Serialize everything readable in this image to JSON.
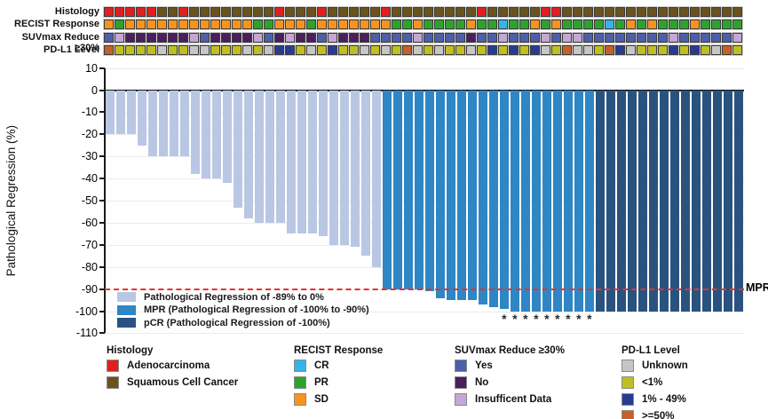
{
  "figure_title": "Pathological regression waterfall plot with clinical annotation tracks",
  "tracks": {
    "palette": {
      "adeno": "#e0201f",
      "squam": "#6b531d",
      "cr": "#36b3e8",
      "pr": "#2da32d",
      "sd": "#f7941e",
      "yes": "#4d5fa8",
      "no": "#4b1e5e",
      "insufficient": "#c6a6d6",
      "unknown": "#c6c6c6",
      "lt1": "#bfbf21",
      "p1to49": "#2b3a91",
      "ge50": "#c65f2b"
    },
    "rows": [
      {
        "name": "histology",
        "label": "Histology",
        "cells": [
          "adeno",
          "adeno",
          "adeno",
          "adeno",
          "adeno",
          "squam",
          "squam",
          "adeno",
          "squam",
          "squam",
          "squam",
          "squam",
          "squam",
          "squam",
          "squam",
          "squam",
          "adeno",
          "squam",
          "squam",
          "squam",
          "adeno",
          "squam",
          "squam",
          "squam",
          "squam",
          "squam",
          "adeno",
          "squam",
          "squam",
          "squam",
          "squam",
          "squam",
          "squam",
          "squam",
          "squam",
          "adeno",
          "squam",
          "squam",
          "squam",
          "squam",
          "squam",
          "adeno",
          "adeno",
          "squam",
          "squam",
          "squam",
          "squam",
          "squam",
          "squam",
          "squam",
          "squam",
          "squam",
          "squam",
          "squam",
          "squam",
          "squam",
          "squam",
          "squam",
          "squam",
          "squam"
        ]
      },
      {
        "name": "recist",
        "label": "RECIST Response",
        "cells": [
          "sd",
          "pr",
          "sd",
          "sd",
          "sd",
          "sd",
          "sd",
          "sd",
          "sd",
          "sd",
          "sd",
          "sd",
          "sd",
          "sd",
          "pr",
          "pr",
          "sd",
          "sd",
          "sd",
          "pr",
          "sd",
          "sd",
          "sd",
          "sd",
          "sd",
          "sd",
          "sd",
          "pr",
          "pr",
          "sd",
          "pr",
          "pr",
          "pr",
          "pr",
          "sd",
          "pr",
          "pr",
          "cr",
          "pr",
          "pr",
          "sd",
          "pr",
          "sd",
          "pr",
          "pr",
          "pr",
          "pr",
          "cr",
          "pr",
          "sd",
          "pr",
          "sd",
          "pr",
          "pr",
          "pr",
          "sd",
          "pr",
          "pr",
          "pr",
          "pr"
        ]
      },
      {
        "name": "suvmax",
        "label": "SUVmax Reduce ≥30%",
        "cells": [
          "yes",
          "insufficient",
          "no",
          "no",
          "no",
          "no",
          "no",
          "no",
          "insufficient",
          "yes",
          "no",
          "no",
          "no",
          "no",
          "insufficient",
          "yes",
          "no",
          "insufficient",
          "no",
          "no",
          "yes",
          "insufficient",
          "no",
          "no",
          "no",
          "yes",
          "yes",
          "yes",
          "yes",
          "insufficient",
          "yes",
          "yes",
          "yes",
          "yes",
          "no",
          "yes",
          "yes",
          "insufficient",
          "yes",
          "yes",
          "yes",
          "insufficient",
          "yes",
          "insufficient",
          "insufficient",
          "yes",
          "yes",
          "yes",
          "yes",
          "yes",
          "yes",
          "yes",
          "yes",
          "insufficient",
          "yes",
          "yes",
          "yes",
          "yes",
          "yes",
          "insufficient"
        ]
      },
      {
        "name": "pdl1",
        "label": "PD-L1 Level",
        "cells": [
          "ge50",
          "lt1",
          "lt1",
          "lt1",
          "lt1",
          "unknown",
          "lt1",
          "lt1",
          "unknown",
          "unknown",
          "lt1",
          "lt1",
          "lt1",
          "unknown",
          "lt1",
          "unknown",
          "p1to49",
          "p1to49",
          "lt1",
          "unknown",
          "lt1",
          "p1to49",
          "lt1",
          "lt1",
          "unknown",
          "lt1",
          "unknown",
          "lt1",
          "ge50",
          "unknown",
          "lt1",
          "unknown",
          "lt1",
          "lt1",
          "unknown",
          "lt1",
          "p1to49",
          "lt1",
          "p1to49",
          "lt1",
          "p1to49",
          "unknown",
          "lt1",
          "ge50",
          "unknown",
          "unknown",
          "lt1",
          "ge50",
          "p1to49",
          "unknown",
          "lt1",
          "lt1",
          "lt1",
          "p1to49",
          "lt1",
          "p1to49",
          "lt1",
          "unknown",
          "ge50",
          "lt1"
        ]
      }
    ]
  },
  "chart_data": {
    "type": "bar",
    "title": "",
    "xlabel": "",
    "ylabel": "Pathological Regression (%)",
    "ylim": [
      -110,
      10
    ],
    "yticks": [
      10,
      0,
      -10,
      -20,
      -30,
      -40,
      -50,
      -60,
      -70,
      -80,
      -90,
      -100,
      -110
    ],
    "grid": true,
    "values": [
      -20,
      -20,
      -20,
      -25,
      -30,
      -30,
      -30,
      -30,
      -38,
      -40,
      -40,
      -42,
      -53,
      -58,
      -60,
      -60,
      -60,
      -65,
      -65,
      -65,
      -66,
      -70,
      -70,
      -71,
      -75,
      -80,
      -90,
      -90,
      -90,
      -90,
      -91,
      -94,
      -95,
      -95,
      -95,
      -97,
      -98,
      -99,
      -100,
      -100,
      -100,
      -100,
      -100,
      -100,
      -100,
      -100,
      -100,
      -100,
      -100,
      -100,
      -100,
      -100,
      -100,
      -100,
      -100,
      -100,
      -100,
      -100,
      -100,
      -100
    ],
    "segments": [
      {
        "name": "regression",
        "label": "Pathological Regression of -89% to 0%",
        "color": "#b9c7e4",
        "count": 26
      },
      {
        "name": "mpr",
        "label": "MPR (Pathological Regression of -100% to -90%)",
        "color": "#2e86c5",
        "count": 20
      },
      {
        "name": "pcr",
        "label": "pCR (Pathological Regression of -100%)",
        "color": "#2a527f",
        "count": 14
      }
    ],
    "reference_line": {
      "value": -90,
      "label": "MPR",
      "color": "#e8322c"
    },
    "asterisk_bars": [
      38,
      39,
      40,
      41,
      42,
      43,
      44,
      45,
      46
    ],
    "asterisk_symbol": "*",
    "legend_position": "lower-left-inside"
  },
  "bottom_legend": [
    {
      "title": "Histology",
      "items": [
        {
          "label": "Adenocarcinoma",
          "color": "#e0201f"
        },
        {
          "label": "Squamous Cell Cancer",
          "color": "#6b531d"
        }
      ]
    },
    {
      "title": "RECIST Response",
      "items": [
        {
          "label": "CR",
          "color": "#36b3e8"
        },
        {
          "label": "PR",
          "color": "#2da32d"
        },
        {
          "label": "SD",
          "color": "#f7941e"
        }
      ]
    },
    {
      "title": "SUVmax Reduce ≥30%",
      "items": [
        {
          "label": "Yes",
          "color": "#4d5fa8"
        },
        {
          "label": "No",
          "color": "#4b1e5e"
        },
        {
          "label": "Insufficent Data",
          "color": "#c6a6d6"
        }
      ]
    },
    {
      "title": "PD-L1 Level",
      "items": [
        {
          "label": "Unknown",
          "color": "#c6c6c6"
        },
        {
          "label": "<1%",
          "color": "#bfbf21"
        },
        {
          "label": "1% - 49%",
          "color": "#2b3a91"
        },
        {
          "label": ">=50%",
          "color": "#c65f2b"
        }
      ]
    }
  ]
}
